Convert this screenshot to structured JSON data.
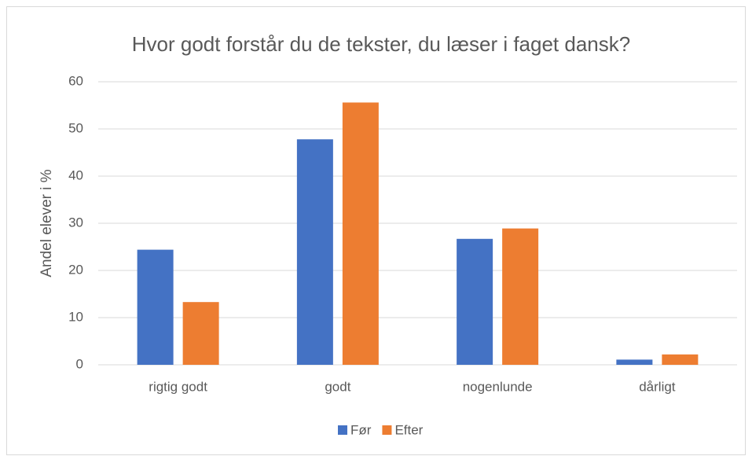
{
  "chart_data": {
    "type": "bar",
    "title": "Hvor godt forstår du de tekster, du læser i faget dansk?",
    "y_label": "Andel elever i %",
    "categories": [
      "rigtig godt",
      "godt",
      "nogenlunde",
      "dårligt"
    ],
    "series": [
      {
        "name": "Før",
        "color": "#4472c4",
        "values": [
          24.4,
          47.8,
          26.7,
          1.1
        ]
      },
      {
        "name": "Efter",
        "color": "#ed7d31",
        "values": [
          13.3,
          55.6,
          28.9,
          2.2
        ]
      }
    ],
    "ylim": [
      0,
      60
    ],
    "yticks": [
      0,
      10,
      20,
      30,
      40,
      50,
      60
    ],
    "grid": true,
    "legend": "bottom"
  }
}
